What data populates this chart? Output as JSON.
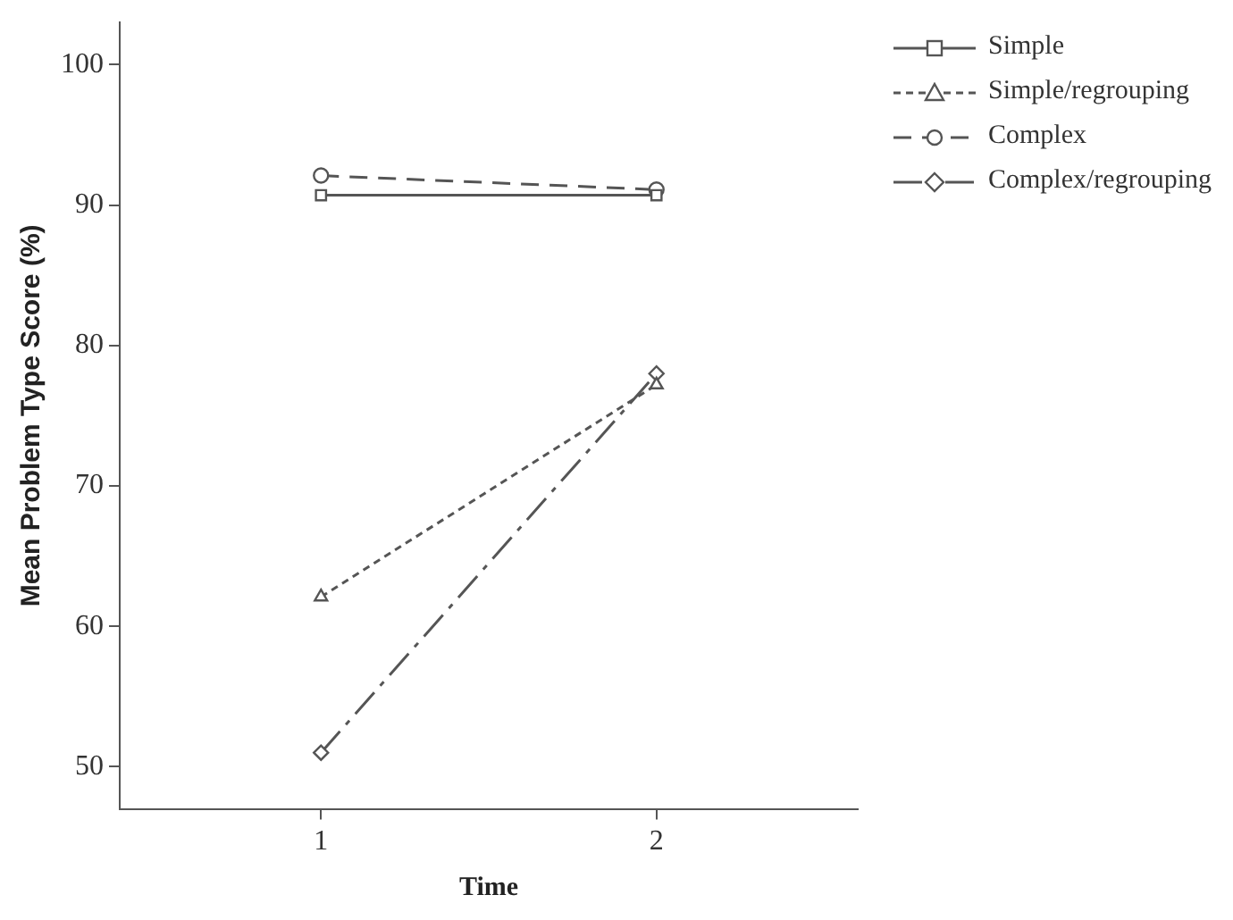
{
  "chart_data": {
    "type": "line",
    "xlabel": "Time",
    "ylabel": "Mean Problem Type Score (%)",
    "x": [
      1,
      2
    ],
    "xlim": [
      0.4,
      2.6
    ],
    "xticks": [
      1,
      2
    ],
    "ylim": [
      47,
      103
    ],
    "yticks": [
      50,
      60,
      70,
      80,
      90,
      100
    ],
    "grid": false,
    "legend": "top right",
    "series": [
      {
        "name": "Simple",
        "color": "#555555",
        "values": [
          90.7,
          90.7
        ],
        "marker": "square",
        "line_style": "solid"
      },
      {
        "name": "Simple/regrouping",
        "color": "#555555",
        "values": [
          62.1,
          77.2
        ],
        "marker": "triangle",
        "line_style": "dotted"
      },
      {
        "name": "Complex",
        "color": "#555555",
        "values": [
          92.1,
          91.1
        ],
        "marker": "circle",
        "line_style": "dashed"
      },
      {
        "name": "Complex/regrouping",
        "color": "#555555",
        "values": [
          51,
          78
        ],
        "marker": "diamond",
        "line_style": "dashdot"
      }
    ]
  }
}
